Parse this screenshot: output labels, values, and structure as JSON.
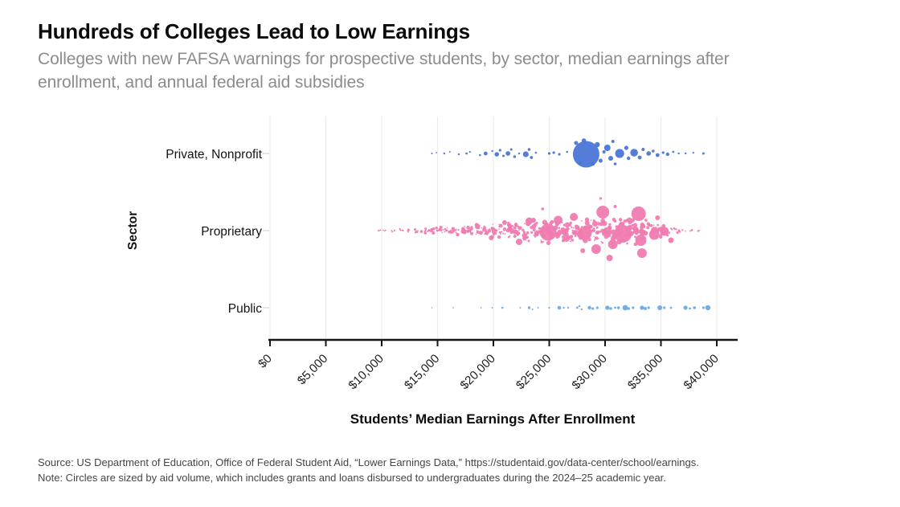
{
  "header": {
    "title": "Hundreds of Colleges Lead to Low Earnings",
    "subtitle": "Colleges with new FAFSA warnings for prospective students, by sector, median earnings after enrollment, and annual federal aid subsidies"
  },
  "footer": {
    "source": "Source: US Department of Education, Office of Federal Student Aid, “Lower Earnings Data,” https://studentaid.gov/data-center/school/earnings.",
    "note": "Note: Circles are sized by aid volume, which includes grants and loans disbursed to undergraduates during the 2024–25 academic year."
  },
  "chart_data": {
    "type": "scatter",
    "subtype": "bubble-swarm",
    "title": "Hundreds of Colleges Lead to Low Earnings",
    "subtitle": "Colleges with new FAFSA warnings for prospective students, by sector, median earnings after enrollment, and annual federal aid subsidies",
    "xlabel": "Students’ Median Earnings After Enrollment",
    "ylabel": "Sector",
    "categories": [
      "Private, Nonprofit",
      "Proprietary",
      "Public"
    ],
    "x_ticks": [
      "$0",
      "$5,000",
      "$10,000",
      "$15,000",
      "$20,000",
      "$25,000",
      "$30,000",
      "$35,000",
      "$40,000"
    ],
    "x_tick_values": [
      0,
      5000,
      10000,
      15000,
      20000,
      25000,
      30000,
      35000,
      40000
    ],
    "x_range": [
      0,
      42000
    ],
    "grid": "vertical-only",
    "legend": "none",
    "size_encoding": "annual federal aid volume (grants + loans, 2024–25)",
    "colors": {
      "private_nonprofit": "#4a76d6",
      "proprietary": "#f07cb0",
      "public": "#59a0e4",
      "gridline": "#ececec",
      "axis": "#151515"
    },
    "series": [
      {
        "name": "Private, Nonprofit",
        "color_key": "private_nonprofit",
        "x_unit": "thousand USD",
        "points": [
          [
            14.5,
            0,
            1.0
          ],
          [
            14.9,
            -1,
            0.9
          ],
          [
            15.6,
            0,
            1.2
          ],
          [
            16.1,
            -2,
            1.0
          ],
          [
            16.9,
            1,
            1.2
          ],
          [
            17.6,
            0,
            1.4
          ],
          [
            17.9,
            -2,
            1.1
          ],
          [
            18.8,
            2,
            1.3
          ],
          [
            19.3,
            0,
            2.4
          ],
          [
            19.9,
            -3,
            1.2
          ],
          [
            20.3,
            1,
            2.8
          ],
          [
            20.6,
            -4,
            1.6
          ],
          [
            20.9,
            3,
            1.5
          ],
          [
            21.3,
            0,
            2.9
          ],
          [
            21.6,
            -5,
            1.5
          ],
          [
            21.9,
            4,
            1.7
          ],
          [
            22.3,
            0,
            1.2
          ],
          [
            22.9,
            1,
            3.6
          ],
          [
            23.2,
            -5,
            1.8
          ],
          [
            23.4,
            5,
            1.9
          ],
          [
            23.8,
            -1,
            1.3
          ],
          [
            25.0,
            0,
            1.6
          ],
          [
            25.4,
            -1,
            1.6
          ],
          [
            25.9,
            1,
            1.6
          ],
          [
            26.6,
            -2,
            1.3
          ],
          [
            28.3,
            1,
            16.5
          ],
          [
            27.4,
            -13,
            2.5
          ],
          [
            27.8,
            12,
            2.2
          ],
          [
            28.1,
            -16,
            2.8
          ],
          [
            28.9,
            13,
            2.4
          ],
          [
            29.3,
            -11,
            3.2
          ],
          [
            29.6,
            9,
            2.5
          ],
          [
            29.9,
            -2,
            2.0
          ],
          [
            30.2,
            -7,
            4.0
          ],
          [
            30.5,
            6,
            3.0
          ],
          [
            30.7,
            -15,
            2.0
          ],
          [
            30.9,
            13,
            1.8
          ],
          [
            31.3,
            0,
            5.6
          ],
          [
            31.9,
            -7,
            2.6
          ],
          [
            32.1,
            6,
            2.2
          ],
          [
            32.6,
            -1,
            4.8
          ],
          [
            33.1,
            5,
            2.4
          ],
          [
            33.4,
            -5,
            2.0
          ],
          [
            33.9,
            0,
            2.8
          ],
          [
            34.3,
            -3,
            1.8
          ],
          [
            34.7,
            2,
            2.4
          ],
          [
            35.2,
            -1,
            1.6
          ],
          [
            35.6,
            1,
            2.2
          ],
          [
            36.1,
            -2,
            1.4
          ],
          [
            36.6,
            0,
            1.2
          ],
          [
            37.2,
            0,
            1.2
          ],
          [
            37.9,
            -1,
            1.1
          ],
          [
            38.8,
            0,
            1.5
          ]
        ]
      },
      {
        "name": "Proprietary",
        "color_key": "proprietary",
        "x_unit": "thousand USD",
        "seed": 11,
        "texture_clusters": [
          [
            9.7,
            0.25,
            3,
            1.5,
            1.1
          ],
          [
            10.3,
            0.25,
            3,
            1.5,
            1.1
          ],
          [
            11.0,
            0.3,
            4,
            2,
            1.3
          ],
          [
            11.7,
            0.3,
            4,
            2,
            1.3
          ],
          [
            12.4,
            0.3,
            5,
            2.5,
            1.5
          ],
          [
            13.1,
            0.3,
            6,
            3,
            1.7
          ],
          [
            13.8,
            0.3,
            7,
            3.5,
            1.9
          ],
          [
            14.5,
            0.3,
            8,
            4,
            2.1
          ],
          [
            15.2,
            0.3,
            8,
            4.5,
            2.1
          ],
          [
            15.9,
            0.3,
            9,
            5,
            2.3
          ],
          [
            16.6,
            0.3,
            9,
            5,
            2.3
          ],
          [
            17.3,
            0.3,
            10,
            6,
            2.5
          ],
          [
            18.0,
            0.3,
            11,
            7,
            2.5
          ],
          [
            18.7,
            0.3,
            12,
            8,
            2.7
          ],
          [
            19.4,
            0.3,
            12,
            8,
            2.7
          ],
          [
            20.1,
            0.3,
            13,
            9,
            2.9
          ],
          [
            20.8,
            0.3,
            13,
            10,
            2.9
          ],
          [
            21.5,
            0.3,
            14,
            11,
            3.1
          ],
          [
            22.2,
            0.3,
            15,
            13,
            3.1
          ],
          [
            22.9,
            0.3,
            16,
            15,
            3.3
          ],
          [
            23.6,
            0.3,
            17,
            17,
            3.3
          ],
          [
            24.3,
            0.3,
            18,
            18,
            3.3
          ],
          [
            25.0,
            0.3,
            18,
            18,
            3.5
          ],
          [
            25.7,
            0.3,
            17,
            16,
            3.5
          ],
          [
            26.4,
            0.3,
            17,
            15,
            3.5
          ],
          [
            27.1,
            0.3,
            18,
            19,
            3.5
          ],
          [
            27.8,
            0.3,
            17,
            15,
            3.5
          ],
          [
            28.5,
            0.3,
            17,
            15,
            3.5
          ],
          [
            29.2,
            0.3,
            17,
            16,
            3.5
          ],
          [
            29.9,
            0.3,
            18,
            17,
            3.5
          ],
          [
            30.6,
            0.3,
            18,
            19,
            3.7
          ],
          [
            31.3,
            0.3,
            18,
            18,
            3.7
          ],
          [
            32.0,
            0.3,
            18,
            18,
            3.7
          ],
          [
            32.7,
            0.3,
            18,
            19,
            3.7
          ],
          [
            33.4,
            0.3,
            17,
            16,
            3.5
          ],
          [
            34.1,
            0.3,
            15,
            13,
            3.3
          ],
          [
            34.8,
            0.3,
            13,
            10,
            3.1
          ],
          [
            35.5,
            0.3,
            11,
            7,
            2.9
          ],
          [
            36.2,
            0.3,
            7,
            4,
            2.3
          ],
          [
            36.9,
            0.3,
            4,
            2.5,
            1.7
          ],
          [
            37.7,
            0.3,
            3,
            2,
            1.5
          ],
          [
            38.3,
            0.2,
            2,
            1.5,
            1.5
          ]
        ],
        "featured_points": [
          [
            24.9,
            2,
            10.5
          ],
          [
            28.2,
            3,
            8.5
          ],
          [
            29.8,
            -23,
            8
          ],
          [
            31.6,
            4,
            11
          ],
          [
            33.0,
            -21,
            9
          ],
          [
            33.2,
            12,
            7
          ],
          [
            30.7,
            17,
            6
          ],
          [
            25.8,
            -13,
            5.5
          ],
          [
            23.2,
            -12,
            4.5
          ],
          [
            27.2,
            -17,
            5
          ],
          [
            26.5,
            9,
            5
          ],
          [
            29.2,
            23,
            6
          ],
          [
            30.4,
            34,
            4
          ],
          [
            33.3,
            28,
            6
          ],
          [
            34.4,
            5,
            6.5
          ],
          [
            35.3,
            1,
            5.5
          ],
          [
            35.9,
            12,
            3.5
          ],
          [
            28.0,
            25,
            3
          ],
          [
            24.4,
            -27,
            1.8
          ],
          [
            30.9,
            -30,
            2
          ],
          [
            34.7,
            -16,
            3
          ],
          [
            22.3,
            14,
            4
          ],
          [
            21.0,
            -10,
            3
          ],
          [
            19.8,
            9,
            3
          ],
          [
            18.5,
            -7,
            2.5
          ],
          [
            16.8,
            5,
            2.2
          ],
          [
            15.3,
            -4,
            2
          ],
          [
            13.9,
            3,
            1.8
          ],
          [
            29.6,
            -40,
            1.6
          ]
        ]
      },
      {
        "name": "Public",
        "color_key": "public",
        "x_unit": "thousand USD",
        "points": [
          [
            14.5,
            0,
            0.8
          ],
          [
            16.4,
            0,
            0.9
          ],
          [
            18.9,
            0,
            0.9
          ],
          [
            19.9,
            0,
            1.0
          ],
          [
            20.8,
            0,
            1.3
          ],
          [
            22.4,
            0,
            1.0
          ],
          [
            23.2,
            0,
            1.7
          ],
          [
            23.5,
            2,
            1.0
          ],
          [
            24.0,
            0,
            1.0
          ],
          [
            25.0,
            0,
            1.1
          ],
          [
            25.9,
            0,
            2.3
          ],
          [
            26.3,
            0,
            1.2
          ],
          [
            26.7,
            0,
            1.2
          ],
          [
            27.5,
            0,
            1.4
          ],
          [
            27.7,
            -2,
            1.2
          ],
          [
            27.9,
            2,
            1.2
          ],
          [
            28.6,
            0,
            2.2
          ],
          [
            28.9,
            1,
            1.6
          ],
          [
            29.3,
            0,
            1.6
          ],
          [
            30.2,
            0,
            2.6
          ],
          [
            30.5,
            1,
            1.8
          ],
          [
            30.9,
            0,
            1.4
          ],
          [
            31.2,
            0,
            1.8
          ],
          [
            31.8,
            0,
            3.4
          ],
          [
            32.1,
            1,
            1.8
          ],
          [
            32.5,
            0,
            1.6
          ],
          [
            33.3,
            0,
            2.6
          ],
          [
            33.6,
            1,
            2.0
          ],
          [
            33.9,
            0,
            1.6
          ],
          [
            34.9,
            0,
            3.0
          ],
          [
            35.3,
            0,
            1.6
          ],
          [
            35.9,
            0,
            1.4
          ],
          [
            37.2,
            0,
            2.6
          ],
          [
            37.6,
            1,
            1.4
          ],
          [
            38.0,
            0,
            1.8
          ],
          [
            38.8,
            0,
            1.6
          ],
          [
            39.2,
            0,
            3.2
          ]
        ]
      }
    ]
  }
}
